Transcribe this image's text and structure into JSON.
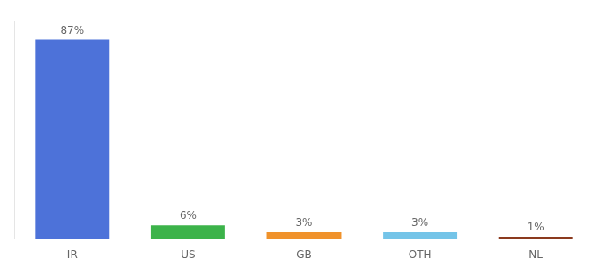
{
  "chart_data": {
    "type": "bar",
    "categories": [
      "IR",
      "US",
      "GB",
      "OTH",
      "NL"
    ],
    "values": [
      87,
      6,
      3,
      3,
      1
    ],
    "value_labels": [
      "87%",
      "6%",
      "3%",
      "3%",
      "1%"
    ],
    "colors": [
      "#4d72d9",
      "#3cb34a",
      "#f0922b",
      "#74c4e8",
      "#8b3a1e"
    ],
    "ylim": [
      0,
      95
    ],
    "data_labels": true,
    "tick_labels": "x",
    "grid": false
  }
}
